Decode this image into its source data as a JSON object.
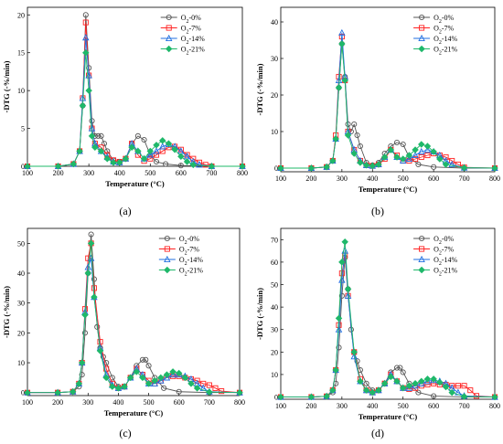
{
  "colors": {
    "s0": "#555555",
    "s7": "#ff2222",
    "s14": "#1f6fe0",
    "s21": "#1fb86a"
  },
  "chart_data": [
    {
      "type": "line",
      "panel": "(a)",
      "title": "",
      "xlabel": "Temperature (°C)",
      "ylabel": "-DTG (-%/min)",
      "xlim": [
        100,
        800
      ],
      "ylim": [
        0,
        21
      ],
      "xticks": [
        100,
        200,
        300,
        400,
        500,
        600,
        700,
        800
      ],
      "yticks": [
        0,
        5,
        10,
        15,
        20
      ],
      "legend_position": "top-right",
      "series": [
        {
          "name": "O2-0%",
          "marker": "circle",
          "x": [
            100,
            200,
            250,
            270,
            280,
            290,
            300,
            310,
            320,
            330,
            340,
            350,
            360,
            380,
            400,
            420,
            440,
            460,
            480,
            500,
            520,
            550,
            600,
            700,
            800
          ],
          "y": [
            0,
            0,
            0.3,
            2,
            8,
            20,
            13,
            6,
            4,
            4,
            4,
            3,
            2,
            0.8,
            0.6,
            1,
            3,
            4,
            3.5,
            1.5,
            0.6,
            0.3,
            0.1,
            0,
            0
          ]
        },
        {
          "name": "O2-7%",
          "marker": "square",
          "x": [
            100,
            200,
            250,
            270,
            280,
            290,
            300,
            310,
            320,
            340,
            360,
            380,
            400,
            420,
            440,
            460,
            480,
            500,
            520,
            540,
            560,
            580,
            600,
            620,
            640,
            660,
            680,
            700,
            800
          ],
          "y": [
            0,
            0,
            0.3,
            2,
            9,
            19,
            12,
            5,
            3,
            2.5,
            1.5,
            0.8,
            0.6,
            1,
            3,
            1.5,
            0.7,
            1,
            1.5,
            2,
            2.5,
            2.6,
            2.2,
            1.5,
            1,
            0.5,
            0.2,
            0,
            0
          ]
        },
        {
          "name": "O2-14%",
          "marker": "triangle",
          "x": [
            100,
            200,
            250,
            270,
            280,
            290,
            300,
            310,
            320,
            340,
            360,
            380,
            400,
            420,
            440,
            460,
            480,
            500,
            520,
            540,
            560,
            580,
            600,
            620,
            640,
            660,
            700,
            800
          ],
          "y": [
            0,
            0,
            0.3,
            2,
            9,
            17,
            12,
            5,
            3,
            2,
            1.2,
            0.6,
            0.5,
            1,
            3,
            2,
            1,
            1.5,
            2,
            2.6,
            2.9,
            2.6,
            2,
            1.3,
            0.6,
            0.2,
            0,
            0
          ]
        },
        {
          "name": "O2-21%",
          "marker": "diamond",
          "x": [
            100,
            200,
            250,
            270,
            280,
            290,
            300,
            310,
            320,
            340,
            360,
            380,
            400,
            420,
            440,
            460,
            480,
            500,
            520,
            540,
            560,
            580,
            600,
            620,
            640,
            700,
            800
          ],
          "y": [
            0,
            0,
            0.3,
            2,
            8,
            15,
            10,
            4,
            2.5,
            2,
            1,
            0.5,
            0.5,
            1,
            2.5,
            2,
            1,
            2,
            2.8,
            3.4,
            3,
            2.2,
            1.3,
            0.6,
            0.2,
            0,
            0
          ]
        }
      ]
    },
    {
      "type": "line",
      "panel": "(b)",
      "title": "",
      "xlabel": "Temperature (°C)",
      "ylabel": "-DTG (-%/min)",
      "xlim": [
        100,
        800
      ],
      "ylim": [
        -1,
        44
      ],
      "xticks": [
        100,
        200,
        300,
        400,
        500,
        600,
        700,
        800
      ],
      "yticks": [
        0,
        10,
        20,
        30,
        40
      ],
      "legend_position": "top-right",
      "series": [
        {
          "name": "O2-0%",
          "marker": "circle",
          "x": [
            100,
            200,
            250,
            270,
            280,
            290,
            300,
            310,
            320,
            330,
            340,
            350,
            360,
            380,
            400,
            420,
            440,
            460,
            480,
            500,
            520,
            550,
            600,
            700,
            800
          ],
          "y": [
            0,
            0,
            0.3,
            2,
            8,
            22,
            34,
            25,
            12,
            10,
            12,
            9,
            6,
            1.5,
            0.8,
            1.5,
            4,
            6,
            7,
            6.5,
            3,
            1,
            0.3,
            0,
            0
          ]
        },
        {
          "name": "O2-7%",
          "marker": "square",
          "x": [
            100,
            200,
            250,
            270,
            280,
            290,
            300,
            310,
            320,
            340,
            360,
            380,
            400,
            420,
            440,
            460,
            480,
            500,
            520,
            540,
            560,
            580,
            600,
            620,
            640,
            660,
            680,
            700,
            800
          ],
          "y": [
            0,
            0,
            0.3,
            2,
            9,
            25,
            36,
            24,
            10,
            5,
            2,
            0.8,
            0.6,
            1,
            2.5,
            5,
            3.5,
            2,
            2,
            2.5,
            3,
            3.5,
            4,
            3.5,
            3,
            2,
            1,
            0.2,
            0
          ]
        },
        {
          "name": "O2-14%",
          "marker": "triangle",
          "x": [
            100,
            200,
            250,
            270,
            280,
            290,
            300,
            310,
            320,
            340,
            360,
            380,
            400,
            420,
            440,
            460,
            480,
            500,
            520,
            540,
            560,
            580,
            600,
            620,
            640,
            660,
            700,
            800
          ],
          "y": [
            0,
            0,
            0.3,
            2,
            8,
            24,
            37,
            25,
            10,
            5,
            2,
            0.8,
            0.6,
            1,
            3,
            5,
            3,
            2,
            2.5,
            3.5,
            4.5,
            5,
            4.5,
            3.5,
            2,
            1,
            0.1,
            0
          ]
        },
        {
          "name": "O2-21%",
          "marker": "diamond",
          "x": [
            100,
            200,
            250,
            270,
            280,
            290,
            300,
            310,
            320,
            340,
            360,
            380,
            400,
            420,
            440,
            460,
            480,
            500,
            520,
            540,
            560,
            580,
            600,
            620,
            640,
            700,
            800
          ],
          "y": [
            0,
            0,
            0.3,
            2,
            8,
            22,
            34,
            24,
            9,
            4,
            1.5,
            0.8,
            0.6,
            1,
            3,
            5,
            3,
            2.5,
            3.5,
            5,
            6.5,
            6,
            4.5,
            2.5,
            1,
            0.1,
            0
          ]
        }
      ]
    },
    {
      "type": "line",
      "panel": "(c)",
      "title": "",
      "xlabel": "Temperature (°C)",
      "ylabel": "-DTG (-%/min)",
      "xlim": [
        100,
        800
      ],
      "ylim": [
        -1,
        55
      ],
      "xticks": [
        100,
        200,
        300,
        400,
        500,
        600,
        700,
        800
      ],
      "yticks": [
        0,
        10,
        20,
        30,
        40,
        50
      ],
      "legend_position": "top-right",
      "series": [
        {
          "name": "O2-0%",
          "marker": "circle",
          "x": [
            100,
            200,
            250,
            270,
            280,
            290,
            300,
            310,
            320,
            330,
            340,
            350,
            360,
            380,
            400,
            420,
            440,
            460,
            480,
            490,
            500,
            520,
            550,
            600,
            700,
            800
          ],
          "y": [
            0,
            0,
            0.3,
            2,
            6,
            20,
            40,
            53,
            38,
            22,
            15,
            12,
            10,
            5,
            2,
            2,
            5,
            9,
            11,
            11,
            9,
            5,
            1.5,
            0.3,
            0,
            0
          ]
        },
        {
          "name": "O2-7%",
          "marker": "square",
          "x": [
            100,
            200,
            250,
            270,
            280,
            290,
            300,
            310,
            320,
            340,
            360,
            380,
            400,
            420,
            440,
            460,
            480,
            500,
            520,
            540,
            560,
            580,
            600,
            620,
            640,
            660,
            680,
            700,
            720,
            740,
            800
          ],
          "y": [
            0,
            0,
            0.3,
            3,
            10,
            28,
            45,
            50,
            35,
            17,
            8,
            3,
            1.5,
            2,
            5,
            8,
            6,
            4,
            3,
            4,
            5,
            5.5,
            5.5,
            5,
            4.5,
            4,
            3,
            2.5,
            1.5,
            0.5,
            0
          ]
        },
        {
          "name": "O2-14%",
          "marker": "triangle",
          "x": [
            100,
            200,
            250,
            270,
            280,
            290,
            300,
            310,
            320,
            340,
            360,
            380,
            400,
            420,
            440,
            460,
            480,
            500,
            520,
            540,
            560,
            580,
            600,
            620,
            640,
            660,
            680,
            700,
            800
          ],
          "y": [
            0,
            0,
            0.3,
            3,
            10,
            27,
            42,
            45,
            32,
            15,
            6,
            2.5,
            1.5,
            2,
            5,
            8,
            6,
            3,
            3,
            4,
            5,
            6,
            6,
            5.5,
            4.5,
            3,
            1.5,
            0.3,
            0
          ]
        },
        {
          "name": "O2-21%",
          "marker": "diamond",
          "x": [
            100,
            200,
            250,
            270,
            280,
            290,
            300,
            310,
            320,
            340,
            360,
            380,
            400,
            420,
            440,
            460,
            480,
            500,
            520,
            540,
            560,
            580,
            600,
            620,
            640,
            660,
            700,
            800
          ],
          "y": [
            0,
            0,
            0.3,
            3,
            10,
            26,
            40,
            50,
            32,
            14,
            5,
            2,
            1.5,
            2,
            5,
            7,
            5,
            3,
            4,
            5,
            6,
            7,
            6.5,
            5,
            3,
            1.5,
            0.2,
            0
          ]
        }
      ]
    },
    {
      "type": "line",
      "panel": "(d)",
      "title": "",
      "xlabel": "Temperature (°C)",
      "ylabel": "-DTG (-%/min)",
      "xlim": [
        100,
        800
      ],
      "ylim": [
        -1,
        75
      ],
      "xticks": [
        100,
        200,
        300,
        400,
        500,
        600,
        700,
        800
      ],
      "yticks": [
        0,
        10,
        20,
        30,
        40,
        50,
        60,
        70
      ],
      "legend_position": "top-right",
      "series": [
        {
          "name": "O2-0%",
          "marker": "circle",
          "x": [
            100,
            200,
            250,
            270,
            280,
            290,
            300,
            310,
            320,
            330,
            340,
            350,
            360,
            380,
            400,
            420,
            440,
            460,
            480,
            490,
            500,
            520,
            550,
            600,
            700,
            800
          ],
          "y": [
            0,
            0,
            0.3,
            2,
            6,
            22,
            45,
            62,
            48,
            30,
            20,
            16,
            12,
            6,
            3,
            3,
            6,
            11,
            13,
            13,
            11,
            6,
            2,
            0.4,
            0,
            0
          ]
        },
        {
          "name": "O2-7%",
          "marker": "square",
          "x": [
            100,
            200,
            250,
            270,
            280,
            290,
            300,
            310,
            320,
            340,
            360,
            380,
            400,
            420,
            440,
            460,
            480,
            500,
            520,
            540,
            560,
            580,
            600,
            620,
            640,
            660,
            680,
            700,
            720,
            740,
            800
          ],
          "y": [
            0,
            0,
            0.3,
            3,
            12,
            32,
            55,
            63,
            45,
            20,
            8,
            3,
            2,
            3,
            6,
            10,
            7,
            4,
            3.5,
            4,
            5,
            5.5,
            6,
            5.5,
            5.5,
            5,
            5,
            5,
            3,
            0.5,
            0
          ]
        },
        {
          "name": "O2-14%",
          "marker": "triangle",
          "x": [
            100,
            200,
            250,
            270,
            280,
            290,
            300,
            310,
            320,
            340,
            360,
            380,
            400,
            420,
            440,
            460,
            480,
            500,
            520,
            540,
            560,
            580,
            600,
            620,
            640,
            660,
            680,
            700,
            800
          ],
          "y": [
            0,
            0,
            0.3,
            3,
            12,
            30,
            52,
            65,
            45,
            18,
            7,
            3,
            2,
            3,
            6,
            10,
            7,
            4,
            4,
            5,
            6,
            7,
            7.5,
            7,
            6,
            4,
            2,
            0.5,
            0
          ]
        },
        {
          "name": "O2-21%",
          "marker": "diamond",
          "x": [
            100,
            200,
            250,
            270,
            280,
            290,
            300,
            310,
            320,
            340,
            360,
            380,
            400,
            420,
            440,
            460,
            480,
            500,
            520,
            540,
            560,
            580,
            600,
            620,
            640,
            660,
            700,
            800
          ],
          "y": [
            0,
            0,
            0.3,
            3,
            12,
            35,
            60,
            69,
            48,
            20,
            7,
            3,
            2,
            3,
            6,
            9,
            7,
            4,
            5,
            6,
            7,
            8,
            8,
            6.5,
            4.5,
            2,
            0.2,
            0
          ]
        }
      ]
    }
  ]
}
